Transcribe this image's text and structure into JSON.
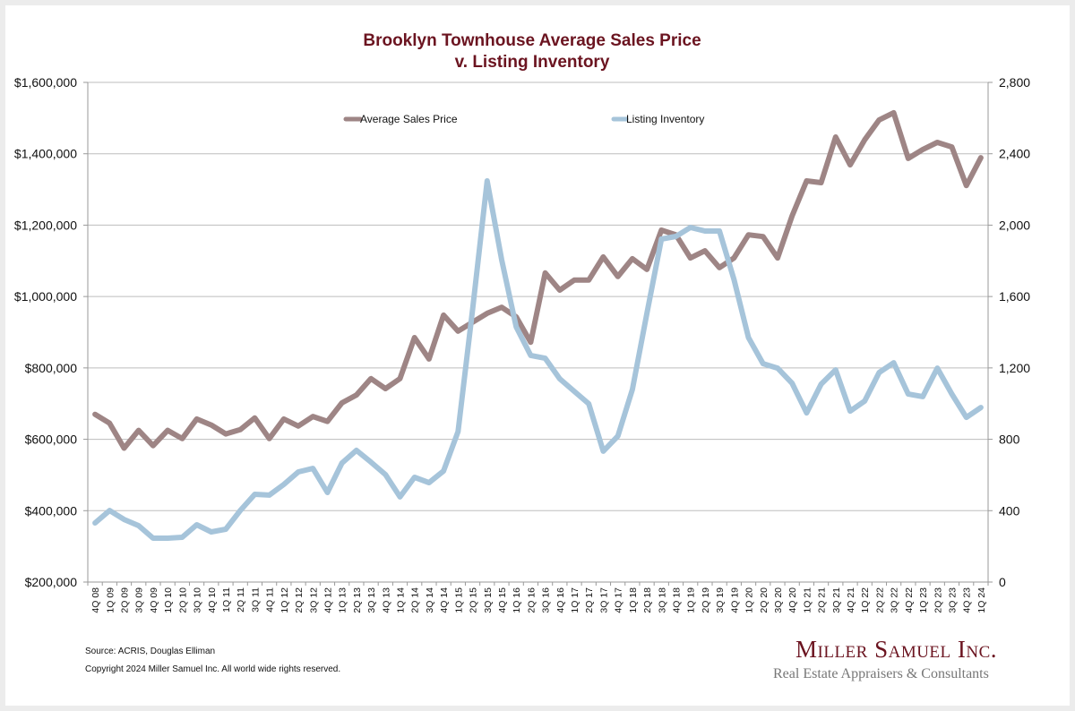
{
  "chart_data": {
    "type": "line",
    "title": "Brooklyn Townhouse Average Sales Price",
    "subtitle": "v. Listing Inventory",
    "xlabel": "",
    "ylabel_left": "",
    "ylabel_right": "",
    "categories": [
      "4Q 08",
      "1Q 09",
      "2Q 09",
      "3Q 09",
      "4Q 09",
      "1Q 10",
      "2Q 10",
      "3Q 10",
      "4Q 10",
      "1Q 11",
      "2Q 11",
      "3Q 11",
      "4Q 11",
      "1Q 12",
      "2Q 12",
      "3Q 12",
      "4Q 12",
      "1Q 13",
      "2Q 13",
      "3Q 13",
      "4Q 13",
      "1Q 14",
      "2Q 14",
      "3Q 14",
      "4Q 14",
      "1Q 15",
      "2Q 15",
      "3Q 15",
      "4Q 15",
      "1Q 16",
      "2Q 16",
      "3Q 16",
      "4Q 16",
      "1Q 17",
      "2Q 17",
      "3Q 17",
      "4Q 17",
      "1Q 18",
      "2Q 18",
      "3Q 18",
      "4Q 18",
      "1Q 19",
      "2Q 19",
      "3Q 19",
      "4Q 19",
      "1Q 20",
      "2Q 20",
      "3Q 20",
      "4Q 20",
      "1Q 21",
      "2Q 21",
      "3Q 21",
      "4Q 21",
      "1Q 22",
      "2Q 22",
      "3Q 22",
      "4Q 22",
      "1Q 23",
      "2Q 23",
      "3Q 23",
      "4Q 23",
      "1Q 24"
    ],
    "series": [
      {
        "name": "Average Sales Price",
        "axis": "left",
        "color": "#9e8585",
        "values": [
          670000,
          645000,
          575000,
          625000,
          582000,
          625000,
          602000,
          657000,
          640000,
          615000,
          627000,
          660000,
          602000,
          657000,
          637000,
          664000,
          650000,
          702000,
          724000,
          770000,
          742000,
          770000,
          885000,
          825000,
          948000,
          903000,
          928000,
          953000,
          970000,
          943000,
          872000,
          1066000,
          1018000,
          1046000,
          1046000,
          1111000,
          1056000,
          1106000,
          1076000,
          1186000,
          1173000,
          1108000,
          1128000,
          1081000,
          1108000,
          1173000,
          1168000,
          1108000,
          1226000,
          1324000,
          1319000,
          1447000,
          1369000,
          1439000,
          1495000,
          1515000,
          1387000,
          1412000,
          1432000,
          1419000,
          1311000,
          1389000
        ]
      },
      {
        "name": "Listing Inventory",
        "axis": "right",
        "color": "#a6c4da",
        "values": [
          331,
          401,
          351,
          316,
          246,
          246,
          251,
          321,
          281,
          296,
          401,
          492,
          487,
          547,
          617,
          637,
          502,
          667,
          738,
          672,
          602,
          477,
          587,
          557,
          622,
          843,
          1530,
          2248,
          1806,
          1430,
          1270,
          1254,
          1139,
          1069,
          999,
          733,
          818,
          1079,
          1505,
          1922,
          1937,
          1987,
          1967,
          1967,
          1696,
          1370,
          1224,
          1199,
          1114,
          948,
          1109,
          1189,
          958,
          1014,
          1174,
          1229,
          1054,
          1039,
          1199,
          1054,
          923,
          978
        ]
      }
    ],
    "left_axis": {
      "ylim": [
        200000,
        1600000
      ],
      "ticks": [
        200000,
        400000,
        600000,
        800000,
        1000000,
        1200000,
        1400000,
        1600000
      ],
      "tick_labels": [
        "$200,000",
        "$400,000",
        "$600,000",
        "$800,000",
        "$1,000,000",
        "$1,200,000",
        "$1,400,000",
        "$1,600,000"
      ]
    },
    "right_axis": {
      "ylim": [
        0,
        2800
      ],
      "ticks": [
        0,
        400,
        800,
        1200,
        1600,
        2000,
        2400,
        2800
      ],
      "tick_labels": [
        "0",
        "400",
        "800",
        "1,200",
        "1,600",
        "2,000",
        "2,400",
        "2,800"
      ]
    },
    "grid": true,
    "legend": {
      "placement": "top",
      "entries": [
        "Average Sales Price",
        "Listing Inventory"
      ]
    },
    "colors": {
      "title": "#6b1420",
      "grid": "#bdbdbd",
      "axis": "#9a9a9a"
    }
  },
  "footer": {
    "source": "Source: ACRIS, Douglas Elliman",
    "copyright": "Copyright 2024 Miller Samuel Inc.  All world wide rights reserved."
  },
  "logo": {
    "name": "Miller Samuel Inc.",
    "tagline": "Real Estate Appraisers & Consultants"
  }
}
